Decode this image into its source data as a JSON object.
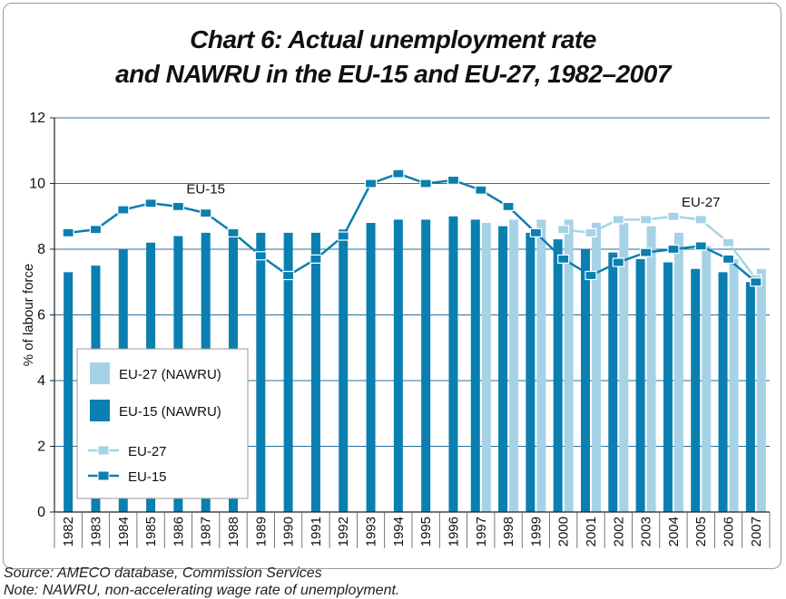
{
  "title_line1": "Chart 6: Actual unemployment rate",
  "title_line2": "and NAWRU in the EU-15 and EU-27, 1982–2007",
  "source": "Source: AMECO database, Commission Services",
  "note": "Note: NAWRU, non-accelerating wage rate of unemployment.",
  "colors": {
    "eu15": "#0a7fb0",
    "eu27": "#a6d2e6"
  },
  "chart_data": {
    "type": "bar",
    "ylabel": "% of labour force",
    "ylim": [
      0,
      12
    ],
    "yticks": [
      0,
      2,
      4,
      6,
      8,
      10,
      12
    ],
    "grid": true,
    "categories": [
      "1982",
      "1983",
      "1984",
      "1985",
      "1986",
      "1987",
      "1988",
      "1989",
      "1990",
      "1991",
      "1992",
      "1993",
      "1994",
      "1995",
      "1996",
      "1997",
      "1998",
      "1999",
      "2000",
      "2001",
      "2002",
      "2003",
      "2004",
      "2005",
      "2006",
      "2007"
    ],
    "bar_series": [
      {
        "name": "EU-27 (NAWRU)",
        "values": [
          null,
          null,
          null,
          null,
          null,
          null,
          null,
          null,
          null,
          null,
          null,
          null,
          null,
          null,
          null,
          8.8,
          8.9,
          8.9,
          8.9,
          8.8,
          8.8,
          8.7,
          8.5,
          8.1,
          7.7,
          7.4
        ]
      },
      {
        "name": "EU-15 (NAWRU)",
        "values": [
          7.3,
          7.5,
          8.0,
          8.2,
          8.4,
          8.5,
          8.5,
          8.5,
          8.5,
          8.5,
          8.6,
          8.8,
          8.9,
          8.9,
          9.0,
          8.9,
          8.7,
          8.5,
          8.3,
          8.0,
          7.9,
          7.7,
          7.6,
          7.4,
          7.3,
          7.0
        ]
      }
    ],
    "line_series": [
      {
        "name": "EU-27",
        "values": [
          null,
          null,
          null,
          null,
          null,
          null,
          null,
          null,
          null,
          null,
          null,
          null,
          null,
          null,
          null,
          null,
          null,
          null,
          8.6,
          8.5,
          8.9,
          8.9,
          9.0,
          8.9,
          8.2,
          7.1
        ]
      },
      {
        "name": "EU-15",
        "values": [
          8.5,
          8.6,
          9.2,
          9.4,
          9.3,
          9.1,
          8.5,
          7.8,
          7.2,
          7.7,
          8.4,
          10.0,
          10.3,
          10.0,
          10.1,
          9.8,
          9.3,
          8.5,
          7.7,
          7.2,
          7.6,
          7.9,
          8.0,
          8.1,
          7.7,
          7.0
        ]
      }
    ],
    "annotations": [
      {
        "text": "EU-15",
        "x": "1987",
        "y": 9.7
      },
      {
        "text": "EU-27",
        "x": "2005",
        "y": 9.3
      }
    ],
    "legend": {
      "placement": "bottom-left",
      "entries": [
        "EU-27 (NAWRU)",
        "EU-15 (NAWRU)",
        "EU-27",
        "EU-15"
      ]
    }
  }
}
